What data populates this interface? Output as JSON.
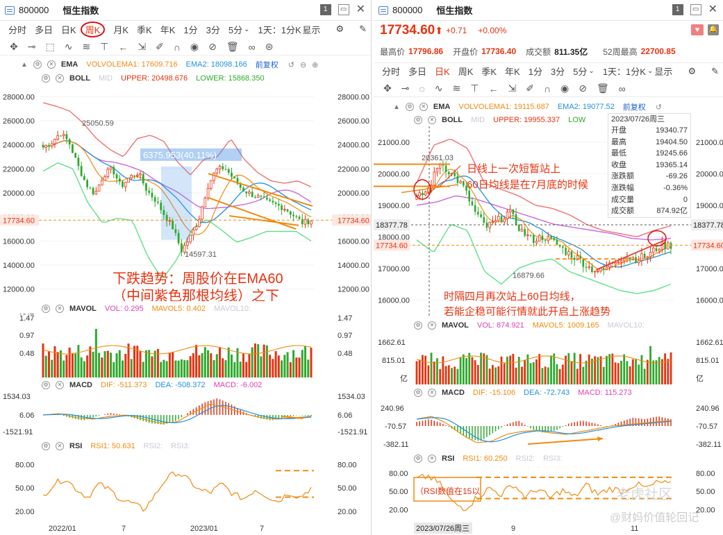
{
  "left": {
    "code": "800000",
    "name": "恒生指数",
    "periods": [
      "分时",
      "多日",
      "日K",
      "周K",
      "月K",
      "季K",
      "年K",
      "1分",
      "3分",
      "5分"
    ],
    "active_period": "周K",
    "range_select": "1天：1分K",
    "display": "显示",
    "ema": {
      "label": "EMA",
      "volvolema1": "VOLVOLEMA1: 17609.716",
      "ema2": "EMA2: 18098.166",
      "fq": "前复权"
    },
    "boll": {
      "label": "BOLL",
      "mid": "MID",
      "upper": "UPPER: 20498.676",
      "lower": "LOWER: 15868.350"
    },
    "y_axis": [
      "28000.00",
      "26000.00",
      "24000.00",
      "22000.00",
      "20000.00",
      "18000.00",
      "16000.00",
      "14000.00",
      "12000.00"
    ],
    "last_price": "17734.60",
    "hi_label": "25050.59",
    "lo_label": "14597.31",
    "range_label": "6375.953(40.11%)",
    "annotation_line1": "下跌趋势：周股价在EMA60",
    "annotation_line2": "（中间紫色那根均线）之下",
    "mavol": {
      "label": "MAVOL",
      "vol": "VOL: 0.295",
      "mavol5": "MAVOL5: 0.402",
      "mavol10": "MAVOL10:",
      "y": [
        "1.47",
        "0.97",
        "0.48",
        "万亿"
      ]
    },
    "macd": {
      "label": "MACD",
      "dif": "DIF: -511.373",
      "dea": "DEA: -508.372",
      "macd": "MACD: -6.002",
      "y": [
        "1534.03",
        "6.06",
        "-1521.91"
      ]
    },
    "rsi": {
      "label": "RSI",
      "rsi1": "RSI1: 50.631",
      "rsi2": "RSI2:",
      "rsi3": "RSI3:",
      "y": [
        "80.00",
        "50.00",
        "20.00"
      ]
    },
    "x_axis": [
      "2022/01",
      "7",
      "2023/01",
      "7"
    ]
  },
  "right": {
    "code": "800000",
    "name": "恒生指数",
    "price": "17734.60",
    "arrow": "⬆",
    "change": "+0.71",
    "change_pct": "+0.00%",
    "high_label": "最高价",
    "high": "17796.86",
    "open_label": "开盘价",
    "open": "17736.40",
    "amount_label": "成交额",
    "amount": "811.35亿",
    "w52_label": "52周最高",
    "w52": "22700.85",
    "periods": [
      "分时",
      "多日",
      "日K",
      "周K",
      "季K",
      "年K",
      "1分",
      "3分",
      "5分"
    ],
    "active_period": "日K",
    "range_select": "1天：1分K",
    "display": "显示",
    "ema": {
      "label": "EMA",
      "volvolema1": "VOLVOLEMA1: 19115.687",
      "ema2": "EMA2: 19077.52",
      "fq": "前复权"
    },
    "boll": {
      "label": "BOLL",
      "mid": "MID",
      "upper": "UPPER: 19955.337",
      "lower": "LOW"
    },
    "y_axis": [
      "21000.00",
      "20000.00",
      "19000.00",
      "18000.00",
      "17000.00",
      "16000.00"
    ],
    "y_axis_right": [
      "21000.00",
      "20000.00",
      "19000.00",
      "18377.78",
      "17734.60",
      "17000.00",
      "16000.00"
    ],
    "crosshair_price": "18377.78",
    "last_price": "17734.60",
    "hi_label": "20361.03",
    "lo_label": "16879.66",
    "note_top_1": "日线上一次短暂站上",
    "note_top_2": "60日均线是在7月底的时候",
    "note_bottom_1": "时隔四月再次站上60日均线，",
    "note_bottom_2": "若能企稳可能行情就此开启上涨趋势",
    "info": {
      "date": "2023/07/26周三",
      "rows": [
        {
          "k": "开盘",
          "v": "19340.77"
        },
        {
          "k": "最高",
          "v": "19404.50"
        },
        {
          "k": "最低",
          "v": "19245.66"
        },
        {
          "k": "收盘",
          "v": "19365.14"
        },
        {
          "k": "涨跌额",
          "v": "-69.26"
        },
        {
          "k": "涨跌幅",
          "v": "-0.36%"
        },
        {
          "k": "成交量",
          "v": "0"
        },
        {
          "k": "成交额",
          "v": "874.92亿"
        }
      ]
    },
    "mavol": {
      "label": "MAVOL",
      "vol": "VOL: 874.921",
      "mavol5": "MAVOL5: 1009.165",
      "mavol10": "MAVOL10:",
      "y": [
        "1662.61",
        "815.01",
        "亿"
      ]
    },
    "macd": {
      "label": "MACD",
      "dif": "DIF: -15.106",
      "dea": "DEA: -72.743",
      "macd": "MACD: 115.273",
      "y": [
        "240.96",
        "-70.57",
        "-382.11"
      ]
    },
    "rsi": {
      "label": "RSI",
      "rsi1": "RSI1: 60.250",
      "rsi2": "RSI2:",
      "rsi3": "RSI3:",
      "y": [
        "80.00",
        "50.00",
        "20.00"
      ],
      "note": "（RSI数值在15以"
    },
    "x_axis": [
      "2023/07/26周三",
      "9",
      "11"
    ],
    "watermark1": "老虎社区",
    "watermark2": "@财妈价值轮回记"
  },
  "colors": {
    "red": "#e8320f",
    "green": "#2daa2d",
    "orange": "#f08a0e",
    "blue": "#1f8fe0",
    "purple": "#cc66dd",
    "pink": "#f07070",
    "boll_lower": "#5fe08a",
    "annotation": "#e8320f"
  },
  "chart_data": [
    {
      "type": "candlestick",
      "title": "恒生指数 周K",
      "ylim": [
        11000,
        29000
      ],
      "x_ticks": [
        "2022/01",
        "7",
        "2023/01",
        "7"
      ],
      "last_close": 17734.6,
      "marked_high": 25050.59,
      "marked_low": 14597.31,
      "ema": {
        "VOLVOLEMA1": 17609.716,
        "EMA2": 18098.166
      },
      "boll": {
        "UPPER": 20498.676,
        "LOWER": 15868.35
      },
      "mavol": {
        "VOL": 0.295,
        "MAVOL5": 0.402
      },
      "macd": {
        "DIF": -511.373,
        "DEA": -508.372,
        "MACD": -6.002
      },
      "rsi": {
        "RSI1": 50.631
      }
    },
    {
      "type": "candlestick",
      "title": "恒生指数 日K",
      "ylim": [
        15500,
        21500
      ],
      "x_ticks": [
        "2023/07/26周三",
        "9",
        "11"
      ],
      "last_close": 17734.6,
      "marked_high": 20361.03,
      "marked_low": 16879.66,
      "ema": {
        "VOLVOLEMA1": 19115.687,
        "EMA2": 19077.52
      },
      "boll": {
        "UPPER": 19955.337
      },
      "mavol": {
        "VOL": 874.921,
        "MAVOL5": 1009.165
      },
      "macd": {
        "DIF": -15.106,
        "DEA": -72.743,
        "MACD": 115.273
      },
      "rsi": {
        "RSI1": 60.25
      }
    }
  ]
}
